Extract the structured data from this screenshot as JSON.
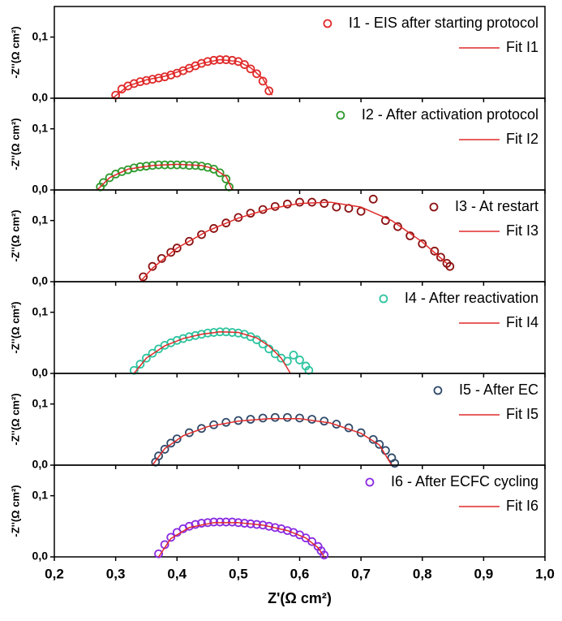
{
  "chart_data": [
    {
      "type": "scatter",
      "y_label": "-Z''(Ω cm²)",
      "xlim": [
        0.2,
        1.0
      ],
      "ylim": [
        0,
        0.15
      ],
      "yticks": [
        {
          "value": 0,
          "label": "0,0"
        },
        {
          "value": 0.1,
          "label": "0,1"
        }
      ],
      "legend": "upper right",
      "series": [
        {
          "name": "I1 - EIS after starting protocol",
          "style": "markers",
          "color": "#e02a2a",
          "x": [
            0.3,
            0.31,
            0.32,
            0.33,
            0.34,
            0.35,
            0.36,
            0.37,
            0.38,
            0.39,
            0.4,
            0.41,
            0.42,
            0.43,
            0.44,
            0.45,
            0.46,
            0.47,
            0.48,
            0.49,
            0.5,
            0.51,
            0.52,
            0.53,
            0.54,
            0.55
          ],
          "values": [
            0.005,
            0.015,
            0.02,
            0.024,
            0.027,
            0.029,
            0.031,
            0.033,
            0.035,
            0.038,
            0.041,
            0.045,
            0.049,
            0.053,
            0.057,
            0.06,
            0.062,
            0.063,
            0.063,
            0.062,
            0.06,
            0.055,
            0.048,
            0.04,
            0.028,
            0.012
          ]
        },
        {
          "name": "Fit I1",
          "style": "line",
          "color": "#e02a2a",
          "x": [
            0.295,
            0.32,
            0.35,
            0.38,
            0.41,
            0.44,
            0.47,
            0.5,
            0.52,
            0.54,
            0.555
          ],
          "values": [
            0,
            0.02,
            0.03,
            0.036,
            0.046,
            0.057,
            0.063,
            0.06,
            0.05,
            0.032,
            0.005
          ]
        }
      ]
    },
    {
      "type": "scatter",
      "y_label": "-Z''(Ω cm²)",
      "xlim": [
        0.2,
        1.0
      ],
      "ylim": [
        0,
        0.15
      ],
      "yticks": [
        {
          "value": 0,
          "label": "0,0"
        },
        {
          "value": 0.1,
          "label": "0,1"
        }
      ],
      "legend": "upper right",
      "series": [
        {
          "name": "I2 - After activation protocol",
          "style": "markers",
          "color": "#2e9a2e",
          "x": [
            0.275,
            0.28,
            0.29,
            0.3,
            0.31,
            0.32,
            0.33,
            0.34,
            0.35,
            0.36,
            0.37,
            0.38,
            0.39,
            0.4,
            0.41,
            0.42,
            0.43,
            0.44,
            0.45,
            0.46,
            0.47,
            0.48,
            0.485
          ],
          "values": [
            0.005,
            0.012,
            0.02,
            0.026,
            0.03,
            0.033,
            0.036,
            0.038,
            0.039,
            0.04,
            0.041,
            0.041,
            0.041,
            0.041,
            0.041,
            0.04,
            0.04,
            0.039,
            0.037,
            0.034,
            0.028,
            0.018,
            0.005
          ]
        },
        {
          "name": "Fit I2",
          "style": "line",
          "color": "#e02a2a",
          "x": [
            0.27,
            0.29,
            0.32,
            0.36,
            0.4,
            0.44,
            0.46,
            0.48,
            0.49
          ],
          "values": [
            0,
            0.02,
            0.034,
            0.04,
            0.042,
            0.04,
            0.035,
            0.022,
            0
          ]
        }
      ]
    },
    {
      "type": "scatter",
      "y_label": "-Z''(Ω cm²)",
      "xlim": [
        0.2,
        1.0
      ],
      "ylim": [
        0,
        0.15
      ],
      "yticks": [
        {
          "value": 0,
          "label": "0,0"
        },
        {
          "value": 0.1,
          "label": "0,1"
        }
      ],
      "legend": "upper right",
      "series": [
        {
          "name": "I3 - At restart",
          "style": "markers",
          "color": "#8b1010",
          "x": [
            0.345,
            0.36,
            0.375,
            0.39,
            0.4,
            0.42,
            0.44,
            0.46,
            0.48,
            0.5,
            0.52,
            0.54,
            0.56,
            0.58,
            0.6,
            0.62,
            0.64,
            0.66,
            0.68,
            0.7,
            0.72,
            0.74,
            0.76,
            0.78,
            0.8,
            0.82,
            0.83,
            0.84,
            0.845
          ],
          "values": [
            0.008,
            0.025,
            0.038,
            0.048,
            0.055,
            0.066,
            0.077,
            0.087,
            0.096,
            0.105,
            0.112,
            0.118,
            0.123,
            0.127,
            0.13,
            0.13,
            0.128,
            0.122,
            0.12,
            0.115,
            0.135,
            0.1,
            0.09,
            0.075,
            0.062,
            0.05,
            0.04,
            0.03,
            0.025
          ]
        },
        {
          "name": "Fit I3",
          "style": "line",
          "color": "#e02a2a",
          "x": [
            0.34,
            0.36,
            0.4,
            0.45,
            0.5,
            0.55,
            0.6,
            0.65,
            0.7,
            0.75,
            0.8,
            0.84
          ],
          "values": [
            0,
            0.022,
            0.055,
            0.083,
            0.104,
            0.119,
            0.128,
            0.13,
            0.122,
            0.1,
            0.065,
            0.03
          ]
        }
      ]
    },
    {
      "type": "scatter",
      "y_label": "-Z''(Ω cm²)",
      "xlim": [
        0.2,
        1.0
      ],
      "ylim": [
        0,
        0.15
      ],
      "yticks": [
        {
          "value": 0,
          "label": "0,0"
        },
        {
          "value": 0.1,
          "label": "0,1"
        }
      ],
      "legend": "upper right",
      "series": [
        {
          "name": "I4 - After reactivation",
          "style": "markers",
          "color": "#2ec4a0",
          "x": [
            0.33,
            0.34,
            0.35,
            0.36,
            0.37,
            0.38,
            0.39,
            0.4,
            0.41,
            0.42,
            0.43,
            0.44,
            0.45,
            0.46,
            0.47,
            0.48,
            0.49,
            0.5,
            0.51,
            0.52,
            0.53,
            0.54,
            0.55,
            0.56,
            0.57,
            0.58,
            0.59,
            0.6,
            0.61,
            0.615
          ],
          "values": [
            0.005,
            0.015,
            0.025,
            0.033,
            0.04,
            0.046,
            0.05,
            0.054,
            0.057,
            0.06,
            0.062,
            0.064,
            0.066,
            0.067,
            0.068,
            0.068,
            0.067,
            0.066,
            0.064,
            0.06,
            0.055,
            0.048,
            0.04,
            0.032,
            0.025,
            0.02,
            0.03,
            0.022,
            0.012,
            0.005
          ]
        },
        {
          "name": "Fit I4",
          "style": "line",
          "color": "#e02a2a",
          "x": [
            0.33,
            0.35,
            0.38,
            0.41,
            0.44,
            0.47,
            0.5,
            0.53,
            0.55,
            0.57,
            0.585
          ],
          "values": [
            0,
            0.025,
            0.045,
            0.057,
            0.064,
            0.068,
            0.067,
            0.058,
            0.045,
            0.025,
            0
          ]
        }
      ]
    },
    {
      "type": "scatter",
      "y_label": "-Z''(Ω cm²)",
      "xlim": [
        0.2,
        1.0
      ],
      "ylim": [
        0,
        0.15
      ],
      "yticks": [
        {
          "value": 0,
          "label": "0,0"
        },
        {
          "value": 0.1,
          "label": "0,1"
        }
      ],
      "legend": "upper right",
      "series": [
        {
          "name": "I5 - After EC",
          "style": "markers",
          "color": "#2f4a6a",
          "x": [
            0.365,
            0.37,
            0.38,
            0.39,
            0.4,
            0.42,
            0.44,
            0.46,
            0.48,
            0.5,
            0.52,
            0.54,
            0.56,
            0.58,
            0.6,
            0.62,
            0.64,
            0.66,
            0.68,
            0.7,
            0.72,
            0.73,
            0.74,
            0.75,
            0.755
          ],
          "values": [
            0.005,
            0.015,
            0.026,
            0.036,
            0.043,
            0.053,
            0.06,
            0.066,
            0.07,
            0.073,
            0.075,
            0.077,
            0.078,
            0.078,
            0.077,
            0.075,
            0.072,
            0.067,
            0.061,
            0.053,
            0.042,
            0.034,
            0.024,
            0.012,
            0.003
          ]
        },
        {
          "name": "Fit I5",
          "style": "line",
          "color": "#e02a2a",
          "x": [
            0.36,
            0.38,
            0.41,
            0.45,
            0.5,
            0.55,
            0.6,
            0.65,
            0.7,
            0.73,
            0.75
          ],
          "values": [
            0,
            0.027,
            0.048,
            0.063,
            0.072,
            0.076,
            0.076,
            0.069,
            0.052,
            0.033,
            0
          ]
        }
      ]
    },
    {
      "type": "scatter",
      "y_label": "-Z''(Ω cm²)",
      "x_label": "Z'(Ω cm²)",
      "xlim": [
        0.2,
        1.0
      ],
      "ylim": [
        0,
        0.15
      ],
      "xticks": [
        {
          "value": 0.2,
          "label": "0,2"
        },
        {
          "value": 0.3,
          "label": "0,3"
        },
        {
          "value": 0.4,
          "label": "0,4"
        },
        {
          "value": 0.5,
          "label": "0,5"
        },
        {
          "value": 0.6,
          "label": "0,6"
        },
        {
          "value": 0.7,
          "label": "0,7"
        },
        {
          "value": 0.8,
          "label": "0,8"
        },
        {
          "value": 0.9,
          "label": "0,9"
        },
        {
          "value": 1.0,
          "label": "1,0"
        }
      ],
      "yticks": [
        {
          "value": 0,
          "label": "0,0"
        },
        {
          "value": 0.1,
          "label": "0,1"
        }
      ],
      "legend": "upper right",
      "series": [
        {
          "name": "I6 - After ECFC cycling",
          "style": "markers",
          "color": "#8a2be2",
          "x": [
            0.37,
            0.38,
            0.39,
            0.4,
            0.41,
            0.42,
            0.43,
            0.44,
            0.45,
            0.46,
            0.47,
            0.48,
            0.49,
            0.5,
            0.51,
            0.52,
            0.53,
            0.54,
            0.55,
            0.56,
            0.57,
            0.58,
            0.59,
            0.6,
            0.61,
            0.62,
            0.63,
            0.635,
            0.64
          ],
          "values": [
            0.005,
            0.02,
            0.032,
            0.04,
            0.046,
            0.05,
            0.053,
            0.055,
            0.056,
            0.057,
            0.057,
            0.057,
            0.057,
            0.056,
            0.055,
            0.054,
            0.053,
            0.052,
            0.05,
            0.048,
            0.046,
            0.043,
            0.04,
            0.036,
            0.031,
            0.025,
            0.017,
            0.01,
            0.003
          ]
        },
        {
          "name": "Fit I6",
          "style": "line",
          "color": "#e02a2a",
          "x": [
            0.37,
            0.39,
            0.42,
            0.46,
            0.5,
            0.54,
            0.58,
            0.61,
            0.63,
            0.64
          ],
          "values": [
            0,
            0.03,
            0.048,
            0.056,
            0.056,
            0.052,
            0.043,
            0.031,
            0.015,
            0
          ]
        }
      ]
    }
  ]
}
